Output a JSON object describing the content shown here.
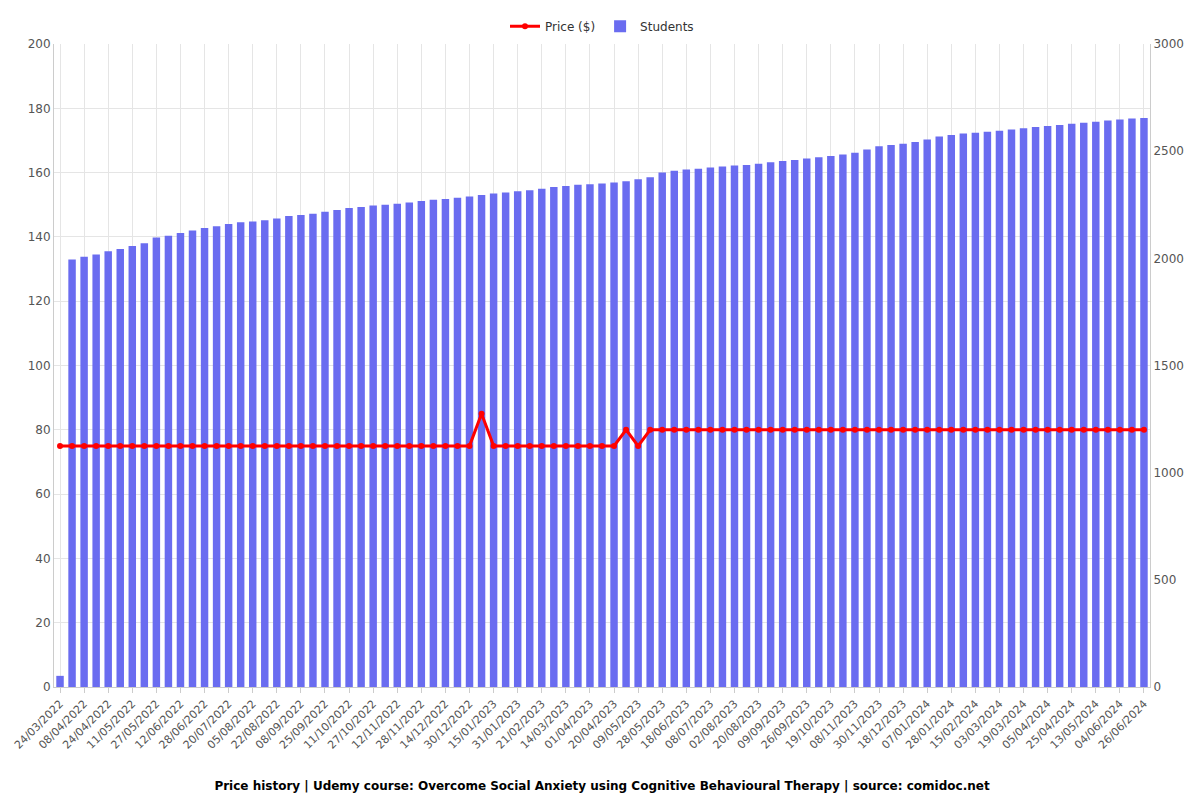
{
  "chart_data": {
    "type": "combo",
    "title": "Price history | Udemy course: Overcome Social Anxiety using Cognitive Behavioural Therapy | source: comidoc.net",
    "categories": [
      "24/03/2022",
      null,
      "08/04/2022",
      null,
      "24/04/2022",
      null,
      "11/05/2022",
      null,
      "27/05/2022",
      null,
      "12/06/2022",
      null,
      "28/06/2022",
      null,
      "20/07/2022",
      null,
      "05/08/2022",
      null,
      "22/08/2022",
      null,
      "08/09/2022",
      null,
      "25/09/2022",
      null,
      "11/10/2022",
      null,
      "27/10/2022",
      null,
      "12/11/2022",
      null,
      "28/11/2022",
      null,
      "14/12/2022",
      null,
      "30/12/2022",
      null,
      "15/01/2023",
      null,
      "31/01/2023",
      null,
      "21/02/2023",
      null,
      "14/03/2023",
      null,
      "01/04/2023",
      null,
      "20/04/2023",
      null,
      "09/05/2023",
      null,
      "28/05/2023",
      null,
      "18/06/2023",
      null,
      "08/07/2023",
      null,
      "02/08/2023",
      null,
      "20/08/2023",
      null,
      "09/09/2023",
      null,
      "26/09/2023",
      null,
      "19/10/2023",
      null,
      "08/11/2023",
      null,
      "30/11/2023",
      null,
      "18/12/2023",
      null,
      "07/01/2024",
      null,
      "28/01/2024",
      null,
      "15/02/2024",
      null,
      "03/03/2024",
      null,
      "19/03/2024",
      null,
      "05/04/2024",
      null,
      "25/04/2024",
      null,
      "13/05/2024",
      null,
      "04/06/2024",
      null,
      "26/06/2024"
    ],
    "series": [
      {
        "name": "Price ($)",
        "type": "line",
        "color": "#ff0000",
        "marker": "circle",
        "axis": "y",
        "values": [
          75,
          75,
          75,
          75,
          75,
          75,
          75,
          75,
          75,
          75,
          75,
          75,
          75,
          75,
          75,
          75,
          75,
          75,
          75,
          75,
          75,
          75,
          75,
          75,
          75,
          75,
          75,
          75,
          75,
          75,
          75,
          75,
          75,
          75,
          75,
          85,
          75,
          75,
          75,
          75,
          75,
          75,
          75,
          75,
          75,
          75,
          75,
          80,
          75,
          80,
          80,
          80,
          80,
          80,
          80,
          80,
          80,
          80,
          80,
          80,
          80,
          80,
          80,
          80,
          80,
          80,
          80,
          80,
          80,
          80,
          80,
          80,
          80,
          80,
          80,
          80,
          80,
          80,
          80,
          80,
          80,
          80,
          80,
          80,
          80,
          80,
          80,
          80,
          80,
          80,
          80
        ]
      },
      {
        "name": "Students",
        "type": "bar",
        "color": "#6a6cf0",
        "axis": "y2",
        "values": [
          52,
          1995,
          2007,
          2018,
          2033,
          2043,
          2058,
          2070,
          2097,
          2105,
          2118,
          2130,
          2142,
          2150,
          2160,
          2168,
          2172,
          2178,
          2186,
          2198,
          2202,
          2208,
          2217,
          2225,
          2235,
          2240,
          2246,
          2250,
          2255,
          2261,
          2268,
          2273,
          2277,
          2283,
          2288,
          2295,
          2303,
          2307,
          2313,
          2318,
          2325,
          2333,
          2337,
          2343,
          2346,
          2349,
          2354,
          2360,
          2369,
          2378,
          2400,
          2409,
          2415,
          2418,
          2424,
          2429,
          2433,
          2436,
          2441,
          2448,
          2454,
          2459,
          2466,
          2472,
          2478,
          2484,
          2493,
          2508,
          2523,
          2529,
          2535,
          2543,
          2555,
          2568,
          2576,
          2582,
          2586,
          2591,
          2595,
          2601,
          2607,
          2613,
          2618,
          2622,
          2628,
          2633,
          2637,
          2643,
          2648,
          2652,
          2655
        ]
      }
    ],
    "ylim": [
      0,
      200
    ],
    "yticks": [
      0,
      20,
      40,
      60,
      80,
      100,
      120,
      140,
      160,
      180,
      200
    ],
    "y2lim": [
      0,
      3000
    ],
    "y2ticks": [
      0,
      500,
      1000,
      1500,
      2000,
      2500,
      3000
    ],
    "grid": true,
    "legend": "top"
  }
}
